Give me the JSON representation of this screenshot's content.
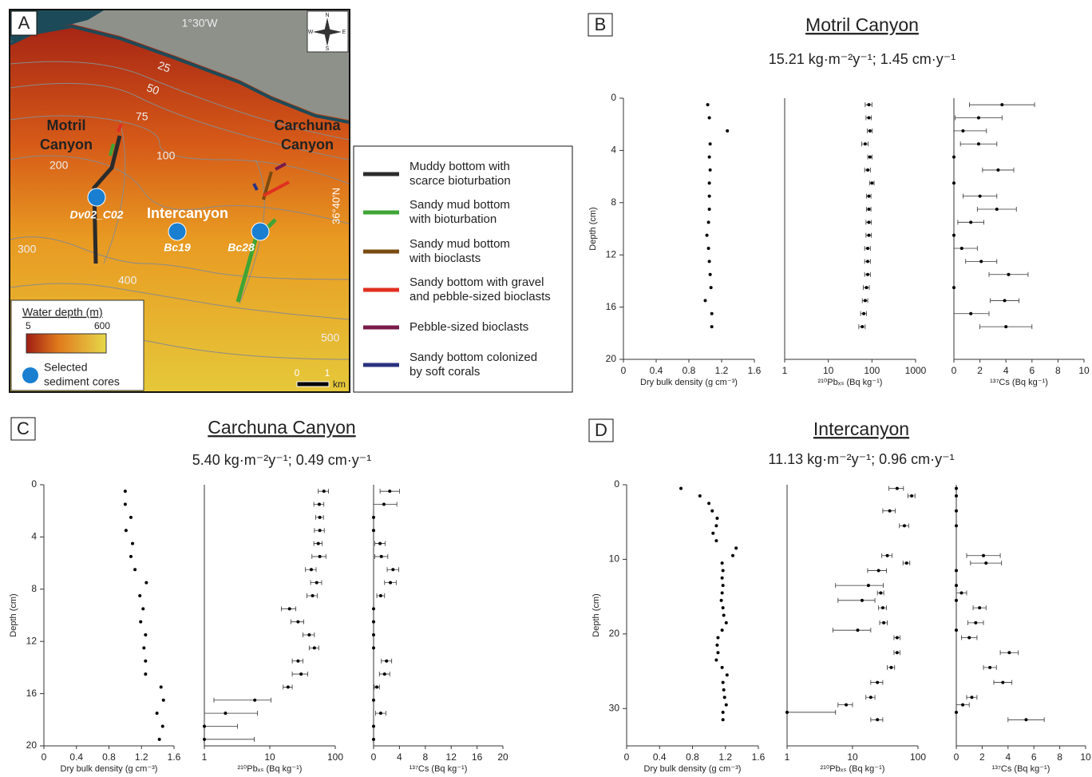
{
  "map": {
    "label": "A",
    "longitude": "1°30'W",
    "latitude": "36°40'N",
    "contours": [
      "25",
      "50",
      "75",
      "100",
      "200",
      "300",
      "400",
      "500"
    ],
    "motril": [
      "Motril",
      "Canyon"
    ],
    "carchuna": [
      "Carchuna",
      "Canyon"
    ],
    "area": "Intercanyon",
    "cores": [
      "Dv02_C02",
      "Bc19",
      "Bc28"
    ],
    "compass": [
      "N",
      "S",
      "E",
      "W"
    ],
    "depth_scale": {
      "title": "Water depth (m)",
      "min": 5,
      "max": 600
    },
    "cores_legend": [
      "Selected",
      "sediment cores"
    ],
    "scale_bar": {
      "ticks": [
        0,
        1
      ],
      "unit": "km"
    },
    "legend": [
      {
        "label": [
          "Muddy bottom with",
          "scarce bioturbation"
        ],
        "color": "#2b2b2b"
      },
      {
        "label": [
          "Sandy mud bottom",
          "with bioturbation"
        ],
        "color": "#3fa535"
      },
      {
        "label": [
          "Sandy mud bottom",
          "with bioclasts"
        ],
        "color": "#7a4a10"
      },
      {
        "label": [
          "Sandy bottom with gravel",
          "and pebble-sized bioclasts"
        ],
        "color": "#e03020"
      },
      {
        "label": [
          "Pebble-sized bioclasts"
        ],
        "color": "#7a1a4a"
      },
      {
        "label": [
          "Sandy bottom colonized",
          "by soft corals"
        ],
        "color": "#2a3380"
      }
    ]
  },
  "panels": [
    {
      "label": "B",
      "title": "Motril Canyon",
      "subtitle": "15.21 kg·m⁻²y⁻¹; 1.45 cm·y⁻¹"
    },
    {
      "label": "C",
      "title": "Carchuna Canyon",
      "subtitle": "5.40 kg·m⁻²y⁻¹; 0.49 cm·y⁻¹"
    },
    {
      "label": "D",
      "title": "Intercanyon",
      "subtitle": "11.13 kg·m⁻²y⁻¹; 0.96 cm·y⁻¹"
    }
  ],
  "chart_data": [
    {
      "type": "scatter",
      "color": "#000",
      "x_label": "Dry bulk density (g cm⁻³)",
      "y_label": "Depth (cm)",
      "y": [
        0.5,
        1.5,
        2.5,
        3.5,
        4.5,
        5.5,
        6.5,
        7.5,
        8.5,
        9.5,
        10.5,
        11.5,
        12.5,
        13.5,
        14.5,
        15.5,
        16.5,
        17.5
      ],
      "x": [
        1.03,
        1.05,
        1.27,
        1.06,
        1.05,
        1.06,
        1.05,
        1.05,
        1.05,
        1.04,
        1.02,
        1.04,
        1.05,
        1.06,
        1.07,
        1.0,
        1.08,
        1.08
      ],
      "xlim": [
        0,
        1.6
      ],
      "xticks": [
        0,
        0.4,
        0.8,
        1.2,
        1.6
      ],
      "ylim": [
        0,
        20
      ],
      "yticks": [
        0,
        4,
        8,
        12,
        16,
        20
      ]
    },
    {
      "type": "scatter",
      "color": "#000",
      "x_label": "²¹⁰Pbₓₛ (Bq kg⁻¹)",
      "xlog": true,
      "y": [
        0.5,
        1.5,
        2.5,
        3.5,
        4.5,
        5.5,
        6.5,
        7.5,
        8.5,
        9.5,
        10.5,
        11.5,
        12.5,
        13.5,
        14.5,
        15.5,
        16.5,
        17.5
      ],
      "x": [
        85,
        85,
        90,
        70,
        90,
        80,
        100,
        85,
        85,
        85,
        85,
        80,
        80,
        80,
        75,
        70,
        65,
        60
      ],
      "errors": [
        15,
        12,
        12,
        12,
        10,
        12,
        12,
        10,
        10,
        12,
        12,
        12,
        12,
        12,
        12,
        10,
        10,
        10
      ],
      "xlim": [
        1,
        1000
      ],
      "xticks": [
        1,
        10,
        100,
        1000
      ],
      "ylim": [
        0,
        20
      ]
    },
    {
      "type": "scatter",
      "color": "#000",
      "x_label": "¹³⁷Cs (Bq kg⁻¹)",
      "y": [
        0.5,
        1.5,
        2.5,
        3.5,
        4.5,
        5.5,
        6.5,
        7.5,
        8.5,
        9.5,
        10.5,
        11.5,
        12.5,
        13.5,
        14.5,
        15.5,
        16.5,
        17.5
      ],
      "x": [
        3.7,
        1.9,
        0.7,
        1.9,
        0,
        3.4,
        0,
        2.0,
        3.3,
        1.3,
        0,
        0.6,
        2.1,
        4.2,
        0,
        3.9,
        1.3,
        4.0
      ],
      "errors": [
        2.5,
        1.8,
        1.8,
        1.4,
        null,
        1.2,
        null,
        1.3,
        1.5,
        1.0,
        null,
        1.2,
        1.2,
        1.5,
        null,
        1.1,
        1.4,
        2.0
      ],
      "xlim": [
        0,
        10
      ],
      "xticks": [
        0,
        2,
        4,
        6,
        8,
        10
      ],
      "ylim": [
        0,
        20
      ]
    },
    {
      "type": "scatter",
      "color": "#000",
      "x_label": "Dry bulk density (g cm⁻³)",
      "y_label": "Depth (cm)",
      "y": [
        0.5,
        1.5,
        2.5,
        3.5,
        4.5,
        5.5,
        6.5,
        7.5,
        8.5,
        9.5,
        10.5,
        11.5,
        12.5,
        13.5,
        14.5,
        15.5,
        16.5,
        17.5,
        18.5,
        19.5
      ],
      "x": [
        1.0,
        1.0,
        1.07,
        1.01,
        1.09,
        1.07,
        1.12,
        1.26,
        1.18,
        1.22,
        1.19,
        1.25,
        1.23,
        1.25,
        1.25,
        1.44,
        1.47,
        1.39,
        1.46,
        1.42
      ],
      "xlim": [
        0,
        1.6
      ],
      "xticks": [
        0,
        0.4,
        0.8,
        1.2,
        1.6
      ],
      "ylim": [
        0,
        20
      ],
      "yticks": [
        0,
        4,
        8,
        12,
        16,
        20
      ]
    },
    {
      "type": "scatter",
      "color": "#000",
      "x_label": "²¹⁰Pbₓₛ (Bq kg⁻¹)",
      "xlog": true,
      "y": [
        0.5,
        1.5,
        2.5,
        3.5,
        4.5,
        5.5,
        6.5,
        7.5,
        8.5,
        9.5,
        10.5,
        11.5,
        12.5,
        13.5,
        14.5,
        15.5,
        16.5,
        17.5,
        18.5,
        19.5
      ],
      "x": [
        67,
        57,
        58,
        58,
        55,
        58,
        43,
        52,
        45,
        20,
        27,
        40,
        48,
        27,
        30,
        19,
        5.9,
        2.1,
        1,
        1
      ],
      "errors": [
        12,
        10,
        8,
        10,
        8,
        14,
        8,
        10,
        8,
        5,
        6,
        8,
        8,
        5,
        8,
        3,
        4.5,
        4.4,
        2.2,
        4.8
      ],
      "xlim": [
        1,
        100
      ],
      "xticks": [
        1,
        10,
        100
      ],
      "ylim": [
        0,
        20
      ]
    },
    {
      "type": "scatter",
      "color": "#000",
      "x_label": "¹³⁷Cs (Bq kg⁻¹)",
      "y": [
        0.5,
        1.5,
        2.5,
        3.5,
        4.5,
        5.5,
        6.5,
        7.5,
        8.5,
        9.5,
        10.5,
        11.5,
        12.5,
        13.5,
        14.5,
        15.5,
        16.5,
        17.5,
        18.5,
        19.5
      ],
      "x": [
        2.5,
        1.6,
        0,
        0,
        1.0,
        1.2,
        3.0,
        2.6,
        1.1,
        0,
        0,
        0,
        0,
        2.0,
        1.7,
        0.5,
        0,
        1.1,
        0,
        0
      ],
      "errors": [
        1.5,
        2.0,
        null,
        null,
        0.8,
        1.0,
        0.9,
        0.9,
        0.6,
        null,
        null,
        null,
        null,
        0.8,
        0.8,
        0.4,
        null,
        0.8,
        null,
        null
      ],
      "xlim": [
        0,
        20
      ],
      "xticks": [
        0,
        4,
        8,
        12,
        16,
        20
      ],
      "ylim": [
        0,
        20
      ]
    },
    {
      "type": "scatter",
      "color": "#000",
      "x_label": "Dry bulk density (g cm⁻³)",
      "y_label": "Depth (cm)",
      "y": [
        0.5,
        1.5,
        2.5,
        3.5,
        4.5,
        5.5,
        6.5,
        7.5,
        8.5,
        9.5,
        10.5,
        11.5,
        12.5,
        13.5,
        14.5,
        15.5,
        16.5,
        17.5,
        18.5,
        19.5,
        20.5,
        21.5,
        22.5,
        23.5,
        24.5,
        25.5,
        26.5,
        27.5,
        28.5,
        29.5,
        30.5,
        31.5
      ],
      "x": [
        0.66,
        0.89,
        1.0,
        1.04,
        1.1,
        1.09,
        1.05,
        1.09,
        1.33,
        1.29,
        1.16,
        1.17,
        1.16,
        1.17,
        1.16,
        1.15,
        1.17,
        1.18,
        1.21,
        1.16,
        1.11,
        1.1,
        1.11,
        1.09,
        1.16,
        1.22,
        1.17,
        1.18,
        1.19,
        1.21,
        1.17,
        1.17
      ],
      "xlim": [
        0,
        1.6
      ],
      "xticks": [
        0,
        0.4,
        0.8,
        1.2,
        1.6
      ],
      "ylim": [
        0,
        35
      ],
      "yticks": [
        0,
        10,
        20,
        30
      ]
    },
    {
      "type": "scatter",
      "color": "#000",
      "x_label": "²¹⁰Pbₓₛ (Bq kg⁻¹)",
      "xlog": true,
      "y": [
        0.5,
        1.5,
        3.5,
        5.5,
        9.5,
        10.5,
        11.5,
        13.5,
        14.5,
        15.5,
        16.5,
        18.5,
        19.5,
        20.5,
        22.5,
        24.5,
        26.5,
        28.5,
        29.5,
        30.5,
        31.5
      ],
      "x": [
        48,
        80,
        37,
        62,
        34,
        67,
        25,
        17.5,
        27,
        14,
        29,
        30,
        12,
        48,
        48,
        39,
        24,
        19,
        8,
        1,
        24
      ],
      "errors": [
        12,
        10,
        8,
        10,
        6,
        8,
        8,
        12,
        3,
        8,
        4,
        4,
        7,
        5,
        5,
        5,
        5,
        3,
        2,
        4.5,
        5
      ],
      "xlim": [
        1,
        100
      ],
      "xticks": [
        1,
        10,
        100
      ],
      "ylim": [
        0,
        35
      ]
    },
    {
      "type": "scatter",
      "color": "#000",
      "x_label": "¹³⁷Cs (Bq kg⁻¹)",
      "y": [
        0.5,
        1.5,
        3.5,
        5.5,
        9.5,
        10.5,
        11.5,
        13.5,
        14.5,
        15.5,
        16.5,
        18.5,
        19.5,
        20.5,
        22.5,
        24.5,
        26.5,
        28.5,
        29.5,
        30.5,
        31.5
      ],
      "x": [
        0,
        0,
        0,
        0,
        2.1,
        2.3,
        0,
        0,
        0.4,
        0,
        1.8,
        1.5,
        0,
        1.0,
        4.1,
        2.6,
        3.6,
        1.2,
        0.5,
        0,
        5.4
      ],
      "errors": [
        null,
        null,
        null,
        null,
        1.3,
        1.2,
        null,
        null,
        0.4,
        null,
        0.5,
        0.6,
        null,
        0.6,
        0.7,
        0.5,
        0.7,
        0.4,
        0.5,
        null,
        1.4
      ],
      "xlim": [
        0,
        10
      ],
      "xticks": [
        0,
        2,
        4,
        6,
        8,
        10
      ],
      "ylim": [
        0,
        35
      ]
    }
  ]
}
